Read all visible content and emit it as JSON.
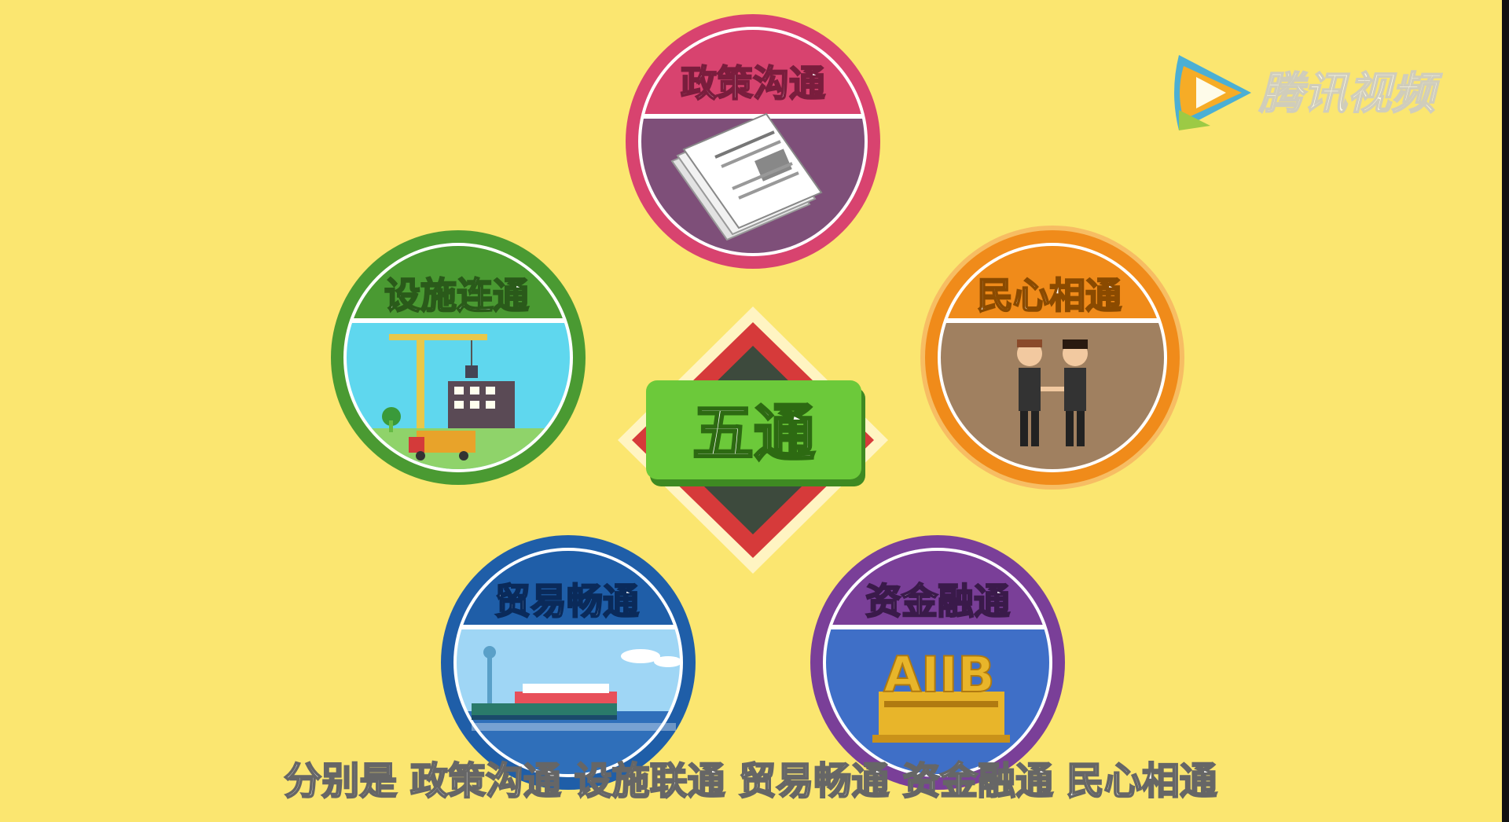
{
  "center": {
    "label": "五通"
  },
  "badges": [
    {
      "key": "policy",
      "label": "政策沟通",
      "ring_color": "#d8436f",
      "scene_color": "#7e4f79",
      "icon": "documents-icon"
    },
    {
      "key": "facilities",
      "label": "设施连通",
      "ring_color": "#4a9a32",
      "scene_color": "#5fd7ee",
      "icon": "construction-crane-icon"
    },
    {
      "key": "people",
      "label": "民心相通",
      "ring_color": "#f08b1a",
      "scene_color": "#a08060",
      "icon": "handshake-people-icon"
    },
    {
      "key": "trade",
      "label": "贸易畅通",
      "ring_color": "#1f5ea8",
      "scene_color": "#9fd6f5",
      "icon": "cargo-ship-icon"
    },
    {
      "key": "finance",
      "label": "资金融通",
      "ring_color": "#7a3f98",
      "scene_color": "#3f6fc7",
      "icon": "aiib-bank-icon"
    }
  ],
  "aiib": {
    "text": "AIIB"
  },
  "watermark": {
    "text": "腾讯视频",
    "icon": "tencent-video-play-icon"
  },
  "subtitle": {
    "text": "分别是 政策沟通 设施联通 贸易畅通 资金融通 民心相通"
  },
  "colors": {
    "background": "#fbe670",
    "center_green": "#6cc93a",
    "diamond_red": "#d63a3a",
    "diamond_dark": "#3d4a3d"
  }
}
